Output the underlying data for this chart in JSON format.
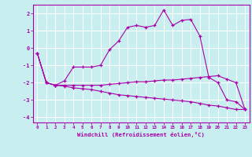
{
  "x": [
    0,
    1,
    2,
    3,
    4,
    5,
    6,
    7,
    8,
    9,
    10,
    11,
    12,
    13,
    14,
    15,
    16,
    17,
    18,
    19,
    20,
    21,
    22,
    23
  ],
  "line1": [
    -0.3,
    -2.0,
    -2.15,
    -1.9,
    -1.1,
    -1.1,
    -1.1,
    -1.0,
    -0.1,
    0.4,
    1.2,
    1.3,
    1.2,
    1.3,
    2.2,
    1.3,
    1.6,
    1.65,
    0.7,
    -1.7,
    -2.0,
    -3.0,
    -3.1,
    -3.55
  ],
  "line2": [
    -0.3,
    -2.0,
    -2.15,
    -2.15,
    -2.15,
    -2.15,
    -2.15,
    -2.15,
    -2.1,
    -2.05,
    -2.0,
    -1.95,
    -1.95,
    -1.9,
    -1.85,
    -1.85,
    -1.8,
    -1.75,
    -1.7,
    -1.65,
    -1.6,
    -1.8,
    -2.0,
    -3.55
  ],
  "line3": [
    -0.3,
    -2.0,
    -2.15,
    -2.2,
    -2.3,
    -2.35,
    -2.4,
    -2.5,
    -2.6,
    -2.7,
    -2.75,
    -2.8,
    -2.85,
    -2.9,
    -2.95,
    -3.0,
    -3.05,
    -3.1,
    -3.2,
    -3.3,
    -3.35,
    -3.45,
    -3.55,
    -3.55
  ],
  "line_color": "#aa00aa",
  "bg_color": "#c8eef0",
  "grid_color": "#ffffff",
  "ylim": [
    -4.3,
    2.5
  ],
  "xlim": [
    -0.5,
    23.5
  ],
  "yticks": [
    -4,
    -3,
    -2,
    -1,
    0,
    1,
    2
  ],
  "xticks": [
    0,
    1,
    2,
    3,
    4,
    5,
    6,
    7,
    8,
    9,
    10,
    11,
    12,
    13,
    14,
    15,
    16,
    17,
    18,
    19,
    20,
    21,
    22,
    23
  ],
  "xlabel": "Windchill (Refroidissement éolien,°C)",
  "marker": "+"
}
